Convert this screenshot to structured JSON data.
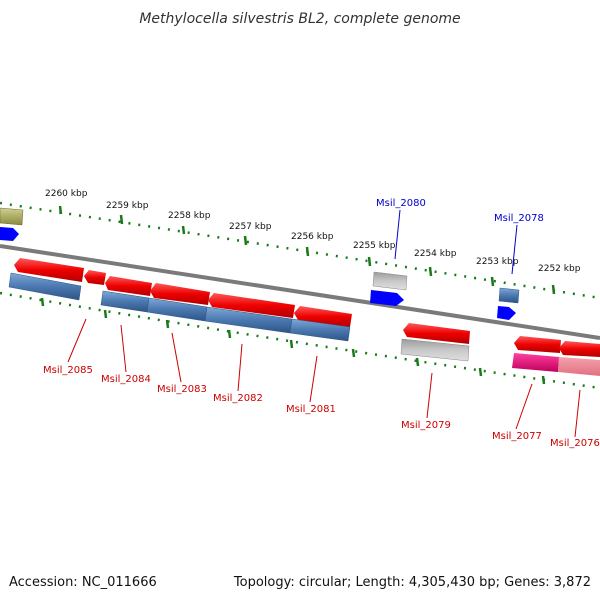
{
  "title": "Methylocella silvestris BL2, complete genome",
  "footer": {
    "accession": "Accession: NC_011666",
    "topology": "Topology: circular; Length: 4,305,430 bp; Genes: 3,872"
  },
  "ruler_labels": [
    "2260 kbp",
    "2259 kbp",
    "2258 kbp",
    "2257 kbp",
    "2256 kbp",
    "2255 kbp",
    "2254 kbp",
    "2253 kbp",
    "2252 kbp"
  ],
  "gene_labels_red": [
    "Msil_2085",
    "Msil_2084",
    "Msil_2083",
    "Msil_2082",
    "Msil_2081",
    "Msil_2079",
    "Msil_2077",
    "Msil_2076"
  ],
  "gene_labels_blue": [
    "Msil_2080",
    "Msil_2078"
  ],
  "colors": {
    "cds": "#ff0000",
    "gene": "#4f81bd",
    "pseudo_gray": "#b0b0b0",
    "forward_blue": "#0000ff",
    "label_red": "#cc0000",
    "label_blue": "#0000cc",
    "tick_green": "#1a7a1a",
    "backbone": "#808080",
    "olive": "#b5b56a",
    "magenta": "#e6007e",
    "pink": "#f28a9a"
  }
}
